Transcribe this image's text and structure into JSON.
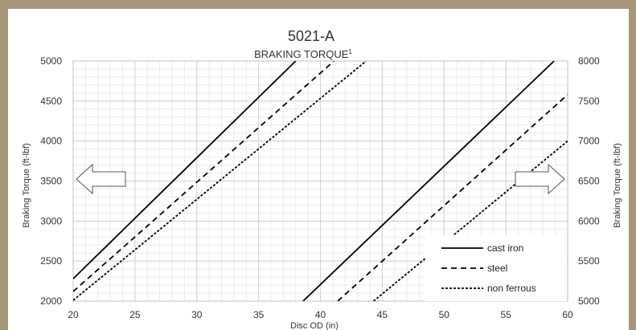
{
  "chart_data": {
    "type": "line",
    "title": "5021-A",
    "subtitle": "BRAKING TORQUE",
    "subtitle_superscript": "1",
    "xlabel": "Disc OD (in)",
    "ylabel_left": "Braking Torque (ft-lbf)",
    "ylabel_right": "Braking Torque (ft-lbf)",
    "xlim": [
      20,
      60
    ],
    "ylim_left": [
      2000,
      5000
    ],
    "ylim_right": [
      5000,
      8000
    ],
    "x_ticks": [
      "20",
      "25",
      "30",
      "35",
      "40",
      "45",
      "50",
      "55",
      "60"
    ],
    "y_ticks_left": [
      "2000",
      "2500",
      "3000",
      "3500",
      "4000",
      "4500",
      "5000"
    ],
    "y_ticks_right": [
      "5000",
      "5500",
      "6000",
      "6500",
      "7000",
      "7500",
      "8000"
    ],
    "grid": true,
    "legend_position": "bottom-right",
    "legend": [
      {
        "label": "cast iron",
        "style": "solid"
      },
      {
        "label": "steel",
        "style": "dashed"
      },
      {
        "label": "non ferrous",
        "style": "dotted"
      }
    ],
    "series": [
      {
        "material": "cast iron",
        "axis": "left",
        "style": "solid",
        "x": [
          20,
          38
        ],
        "y": [
          2280,
          5000
        ]
      },
      {
        "material": "steel",
        "axis": "left",
        "style": "dashed",
        "x": [
          20,
          41.1
        ],
        "y": [
          2120,
          5000
        ]
      },
      {
        "material": "non ferrous",
        "axis": "left",
        "style": "dotted",
        "x": [
          20,
          43.7
        ],
        "y": [
          2010,
          5000
        ]
      },
      {
        "material": "cast iron",
        "axis": "right",
        "style": "solid",
        "x": [
          38.6,
          58.9
        ],
        "y": [
          5000,
          8000
        ]
      },
      {
        "material": "steel",
        "axis": "right",
        "style": "dashed",
        "x": [
          41.4,
          60
        ],
        "y": [
          5000,
          7580
        ]
      },
      {
        "material": "non ferrous",
        "axis": "right",
        "style": "dotted",
        "x": [
          44.3,
          60
        ],
        "y": [
          5000,
          7000
        ]
      }
    ],
    "annotations": [
      {
        "type": "arrow",
        "direction": "left",
        "meaning": "read left axis"
      },
      {
        "type": "arrow",
        "direction": "right",
        "meaning": "read right axis"
      }
    ]
  }
}
